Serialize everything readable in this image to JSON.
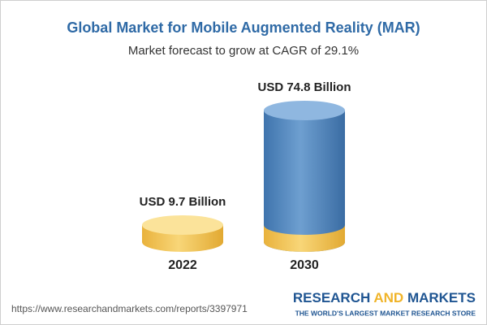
{
  "chart_data": {
    "type": "cylinder",
    "title": "Global Market for Mobile Augmented Reality (MAR)",
    "subtitle": "Market forecast to grow at CAGR of 29.1%",
    "categories": [
      "2022",
      "2030"
    ],
    "values": [
      9.7,
      74.8
    ],
    "value_labels": [
      "USD 9.7 Billion",
      "USD 74.8 Billion"
    ],
    "colors": [
      "#f3c352",
      "#4f86c0"
    ]
  },
  "footer": {
    "url": "https://www.researchandmarkets.com/reports/3397971",
    "brand": [
      "RESEARCH",
      "AND",
      "MARKETS"
    ],
    "tagline": "THE WORLD'S LARGEST MARKET RESEARCH STORE"
  }
}
